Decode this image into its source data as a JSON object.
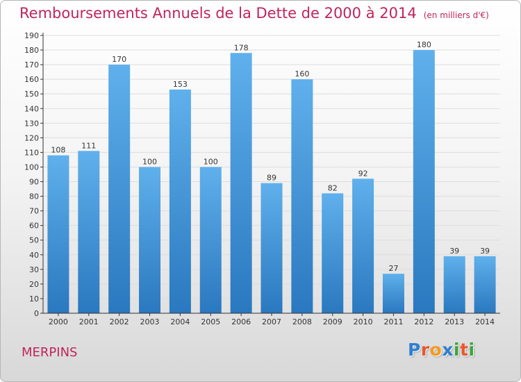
{
  "title": "Remboursements Annuels de la Dette de 2000 à 2014",
  "unit": "(en milliers d'€)",
  "place": "MERPINS",
  "logo": {
    "letters": [
      "P",
      "r",
      "o",
      "x",
      "i",
      "t",
      "i"
    ],
    "colors": [
      "#2e7fd0",
      "#e8572f",
      "#f29a1d",
      "#2e7fd0",
      "#3aa63a",
      "#e8572f",
      "#3aa63a"
    ]
  },
  "colors": {
    "title": "#c0245c",
    "bar_light": "#5fb0ec",
    "bar_dark": "#2a78bf",
    "axis": "#333333",
    "grid": "#dddddd"
  },
  "chart_data": {
    "type": "bar",
    "title": "Remboursements Annuels de la Dette de 2000 à 2014",
    "xlabel": "",
    "ylabel": "",
    "ylim": [
      0,
      190
    ],
    "yticks": [
      0,
      10,
      20,
      30,
      40,
      50,
      60,
      70,
      80,
      90,
      100,
      110,
      120,
      130,
      140,
      150,
      160,
      170,
      180,
      190
    ],
    "grid": true,
    "categories": [
      "2000",
      "2001",
      "2002",
      "2003",
      "2004",
      "2005",
      "2006",
      "2007",
      "2008",
      "2009",
      "2010",
      "2011",
      "2012",
      "2013",
      "2014"
    ],
    "values": [
      108,
      111,
      170,
      100,
      153,
      100,
      178,
      89,
      160,
      82,
      92,
      27,
      180,
      39,
      39
    ]
  }
}
